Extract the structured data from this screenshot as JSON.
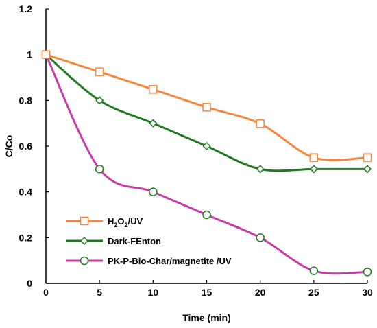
{
  "chart_data": {
    "type": "line",
    "title": "",
    "xlabel": "Time (min)",
    "ylabel": "C/Co",
    "x": [
      0,
      5,
      10,
      15,
      20,
      25,
      30
    ],
    "xlim": [
      0,
      30
    ],
    "ylim": [
      0,
      1.2
    ],
    "xticks": [
      "0",
      "5",
      "10",
      "15",
      "20",
      "25",
      "30"
    ],
    "yticks": [
      "0",
      "0.2",
      "0.4",
      "0.6",
      "0.8",
      "1",
      "1.2"
    ],
    "grid": false,
    "legend_position": "bottom-left",
    "series": [
      {
        "name": "H2O2/UV",
        "name_parts": [
          "H",
          "2",
          "O",
          "2",
          "/UV"
        ],
        "marker": "square",
        "color": "#F7853B",
        "values": [
          1.0,
          0.925,
          0.848,
          0.77,
          0.698,
          0.55,
          0.55
        ]
      },
      {
        "name": "Dark-FEnton",
        "marker": "diamond",
        "color": "#1F7A1F",
        "values": [
          1.0,
          0.8,
          0.7,
          0.6,
          0.5,
          0.5,
          0.5
        ]
      },
      {
        "name": "PK-P-Bio-Char/magnetite /UV",
        "marker": "circle",
        "color": "#C83AA8",
        "values": [
          1.0,
          0.5,
          0.4,
          0.3,
          0.2,
          0.055,
          0.05
        ]
      }
    ]
  }
}
